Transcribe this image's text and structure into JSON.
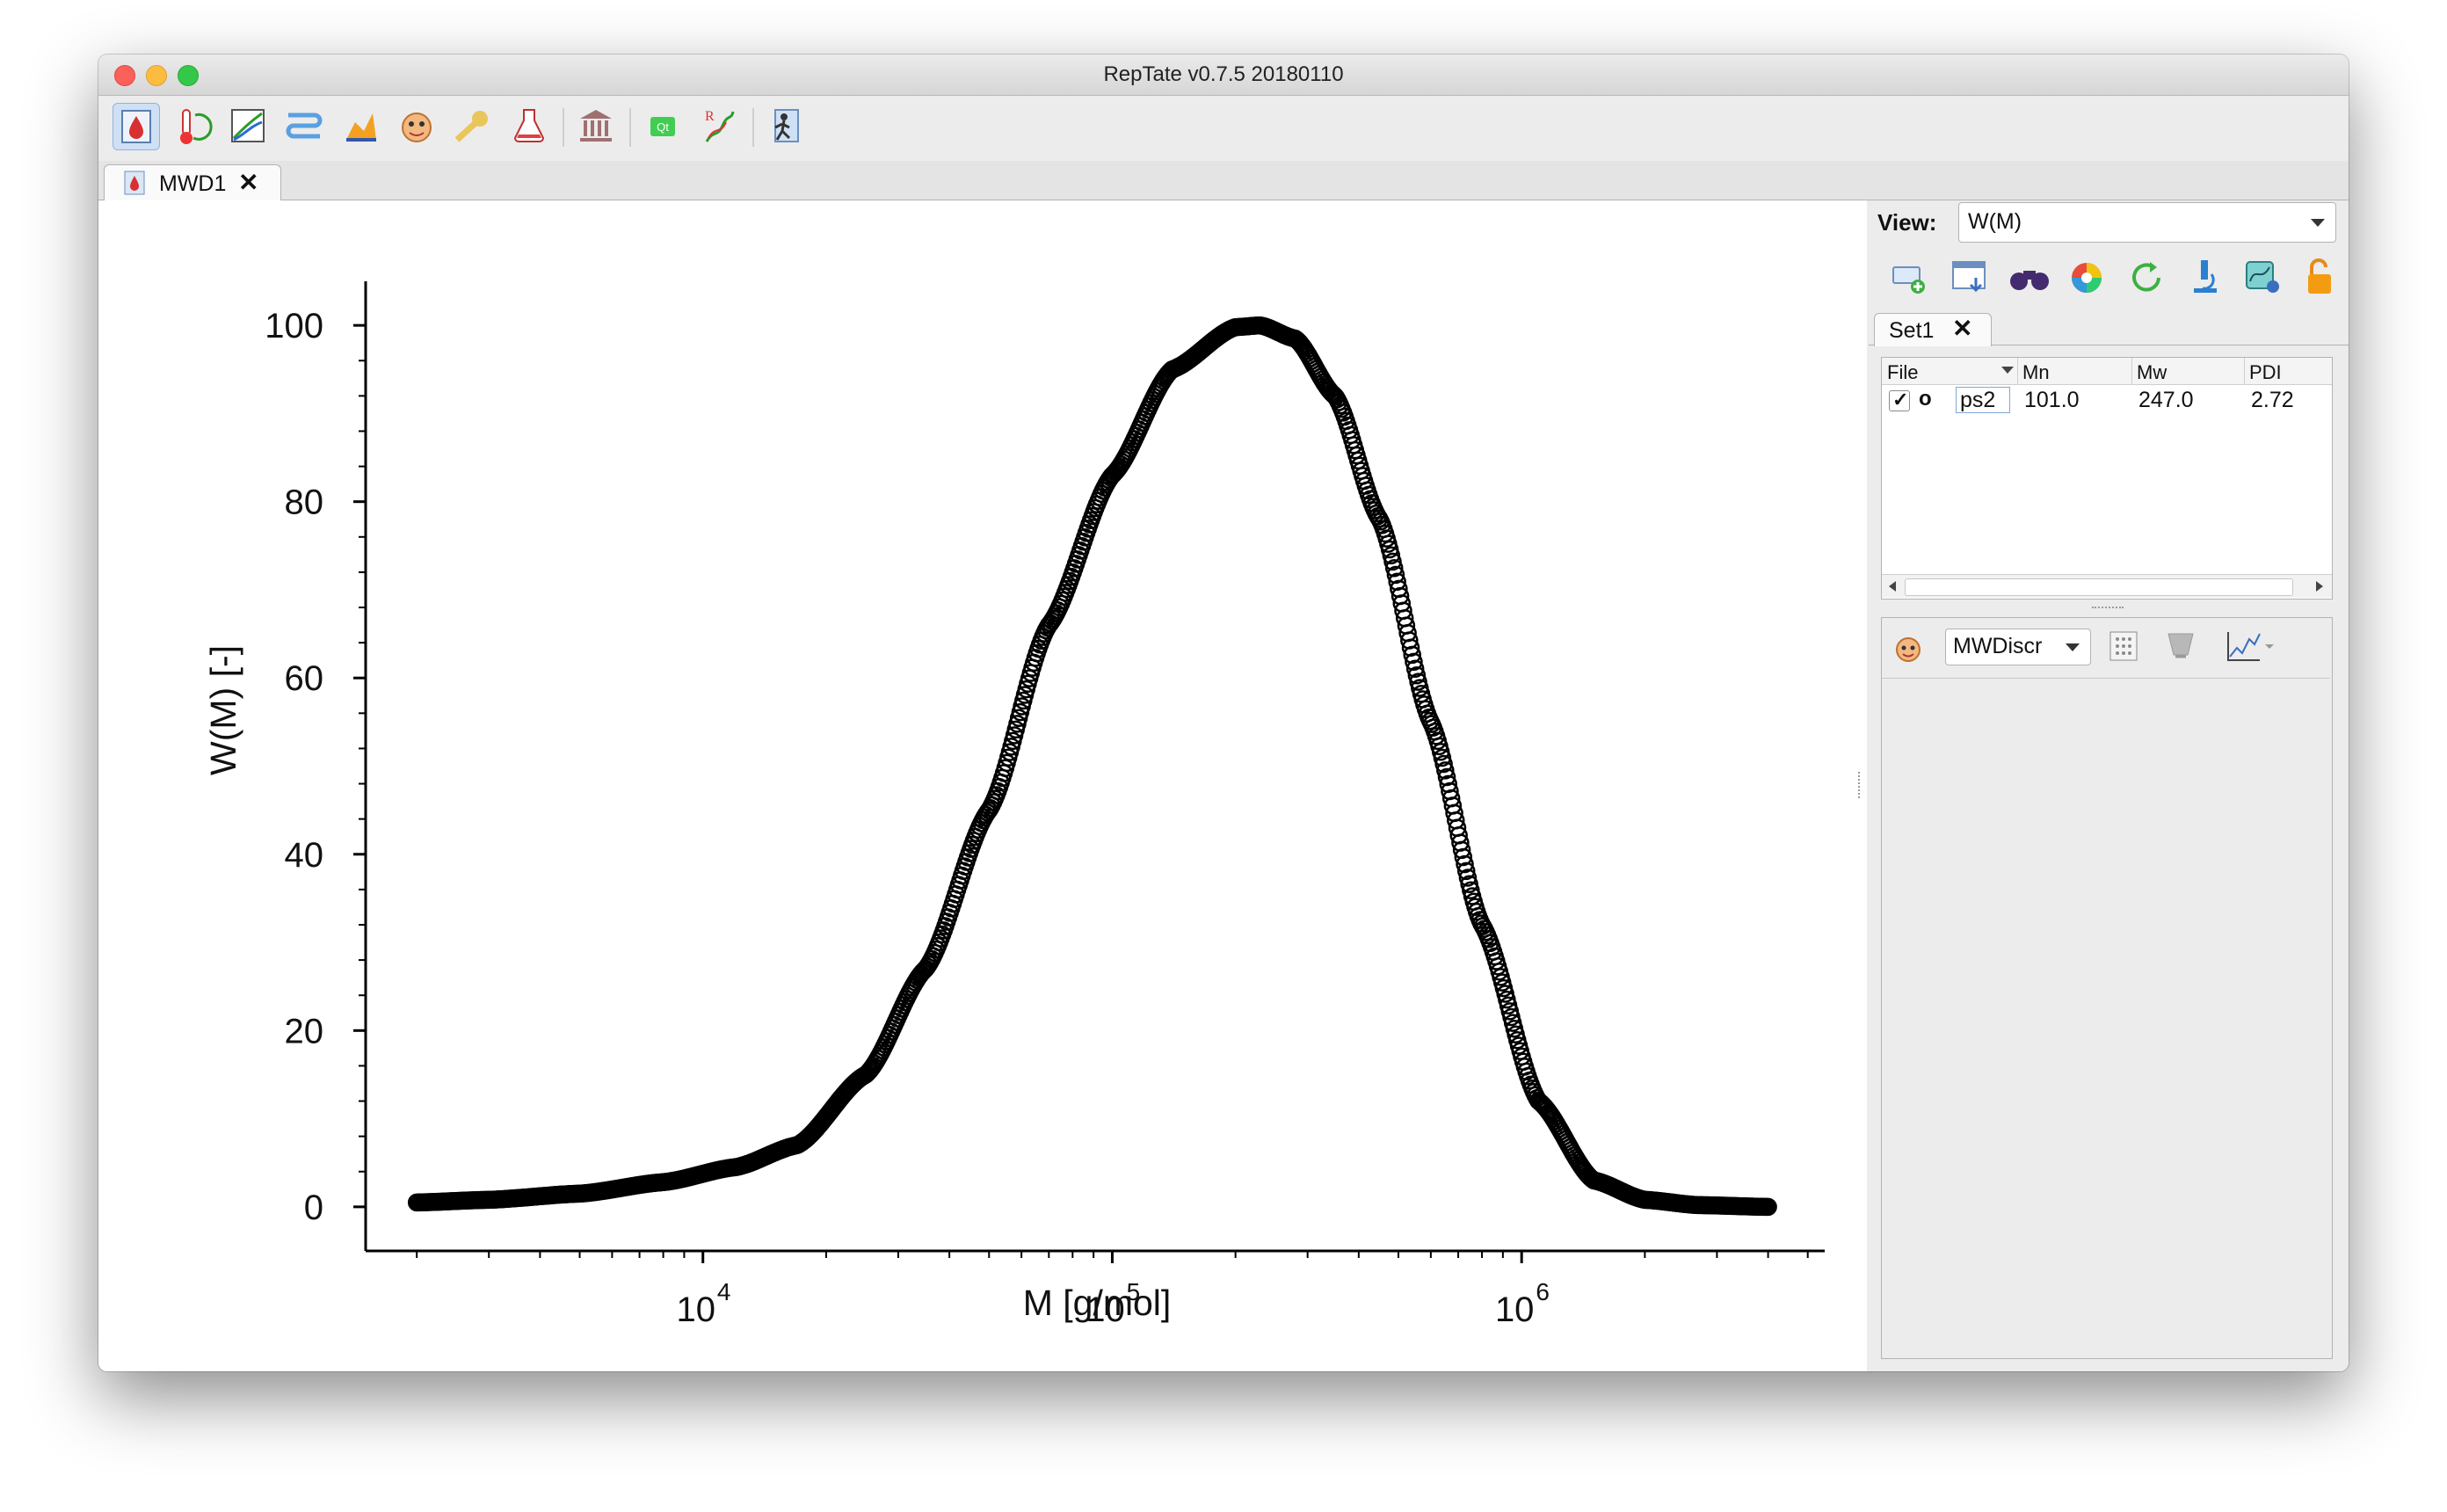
{
  "window": {
    "title": "RepTate v0.7.5 20180110"
  },
  "toolbar": {
    "icons": [
      "mwd-app-icon",
      "tts-app-icon",
      "lve-app-icon",
      "nlve-app-icon",
      "crystal-app-icon",
      "react-app-icon",
      "sans-app-icon",
      "gt-app-icon",
      "theory-museum-icon",
      "qt-icon",
      "reptate-logo-icon",
      "exit-icon"
    ]
  },
  "tabs": [
    {
      "label": "MWD1",
      "close": "✕"
    }
  ],
  "view": {
    "label": "View:",
    "selected": "W(M)"
  },
  "dataset_tabs": [
    {
      "label": "Set1",
      "close": "✕"
    }
  ],
  "file_table": {
    "headers": [
      "File",
      "Mn",
      "Mw",
      "PDI"
    ],
    "rows": [
      {
        "checked": "✓",
        "marker": "o",
        "file": "ps2",
        "Mn": "101.0",
        "Mw": "247.0",
        "PDI": "2.72"
      }
    ]
  },
  "theory": {
    "selected": "MWDiscr"
  },
  "colors": {
    "marker": "#000000",
    "axis": "#000000"
  },
  "chart_data": {
    "type": "scatter",
    "xlabel": "M [g/mol]",
    "ylabel": "W(M) [-]",
    "xscale": "log",
    "xlim": [
      1500,
      5500000
    ],
    "ylim": [
      -5,
      105
    ],
    "xticks": [
      {
        "base": "10",
        "exp": "4",
        "value": 10000
      },
      {
        "base": "10",
        "exp": "5",
        "value": 100000
      },
      {
        "base": "10",
        "exp": "6",
        "value": 1000000
      }
    ],
    "yticks": [
      "0",
      "20",
      "40",
      "60",
      "80",
      "100"
    ],
    "marker": "open-circle",
    "series": [
      {
        "x": [
          2000,
          3000,
          5000,
          8000,
          12000,
          17000,
          25000,
          35000,
          50000,
          70000,
          100000,
          140000,
          200000,
          230000,
          280000,
          350000,
          450000,
          600000,
          800000,
          1100000,
          1500000,
          2000000,
          2700000,
          4000000
        ],
        "y": [
          0.5,
          0.8,
          1.5,
          2.8,
          4.5,
          7.0,
          15,
          27,
          45,
          66,
          83,
          95,
          99.8,
          100,
          98.5,
          92,
          78,
          55,
          32,
          12,
          3,
          0.8,
          0.2,
          0.0
        ]
      }
    ]
  }
}
